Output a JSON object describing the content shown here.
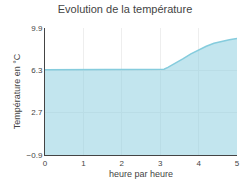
{
  "chart_data": {
    "type": "area",
    "title": "Evolution de la température",
    "xlabel": "heure par heure",
    "ylabel": "Température en °C",
    "x": [
      0,
      0.5,
      1.0,
      1.5,
      2.0,
      2.5,
      3.0,
      3.1,
      3.2,
      3.4,
      3.6,
      3.8,
      4.0,
      4.2,
      4.4,
      4.6,
      4.8,
      5.0
    ],
    "values": [
      6.35,
      6.35,
      6.35,
      6.35,
      6.35,
      6.35,
      6.35,
      6.4,
      6.55,
      6.9,
      7.3,
      7.7,
      8.05,
      8.35,
      8.6,
      8.78,
      8.9,
      9.0
    ],
    "color": "#85ccdd",
    "xlim": [
      0,
      5
    ],
    "ylim": [
      -0.9,
      9.9
    ],
    "xticks": [
      0,
      1,
      2,
      3,
      4,
      5
    ],
    "yticks": [
      -0.9,
      2.7,
      6.3,
      9.9
    ],
    "grid": true
  }
}
